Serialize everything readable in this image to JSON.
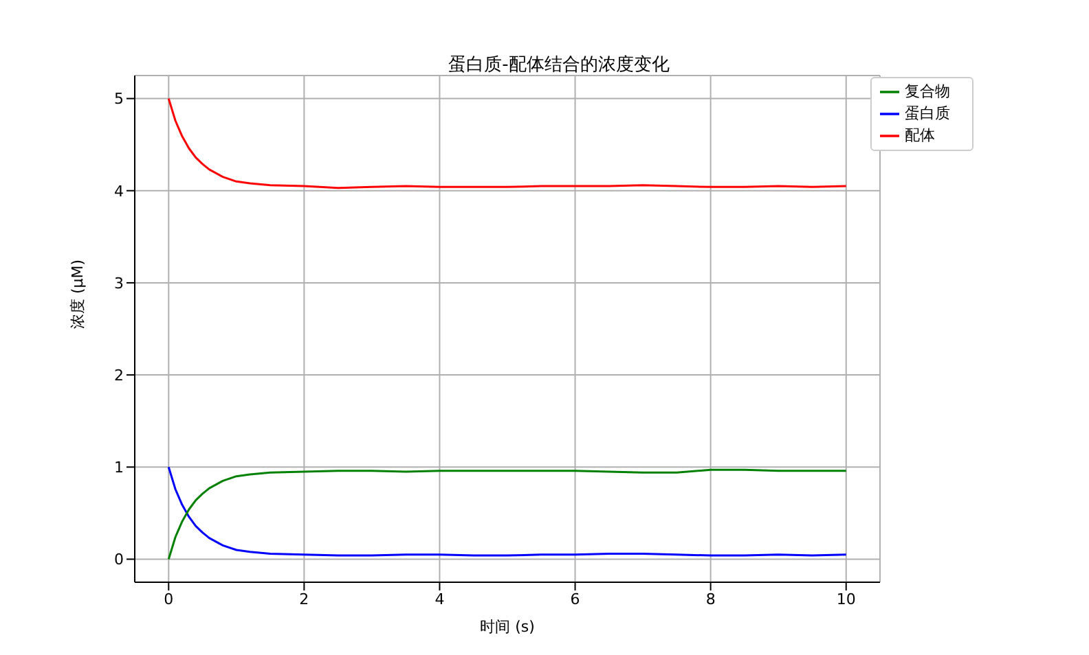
{
  "chart_data": {
    "type": "line",
    "title": "蛋白质-配体结合的浓度变化",
    "xlabel": "时间 (s)",
    "ylabel": "浓度 (μM)",
    "x": [
      0,
      0.1,
      0.2,
      0.3,
      0.4,
      0.5,
      0.6,
      0.8,
      1.0,
      1.2,
      1.5,
      2,
      2.5,
      3,
      3.5,
      4,
      4.5,
      5,
      5.5,
      6,
      6.5,
      7,
      7.5,
      8,
      8.5,
      9,
      9.5,
      10
    ],
    "series": [
      {
        "name": "蛋白质",
        "color": "#0000ff",
        "values": [
          1.0,
          0.76,
          0.59,
          0.46,
          0.36,
          0.29,
          0.23,
          0.15,
          0.1,
          0.08,
          0.06,
          0.05,
          0.04,
          0.04,
          0.05,
          0.05,
          0.04,
          0.04,
          0.05,
          0.05,
          0.06,
          0.06,
          0.05,
          0.04,
          0.04,
          0.05,
          0.04,
          0.05
        ]
      },
      {
        "name": "配体",
        "color": "#ff0000",
        "values": [
          5.0,
          4.76,
          4.59,
          4.46,
          4.36,
          4.29,
          4.23,
          4.15,
          4.1,
          4.08,
          4.06,
          4.05,
          4.03,
          4.04,
          4.05,
          4.04,
          4.04,
          4.04,
          4.05,
          4.05,
          4.05,
          4.06,
          4.05,
          4.04,
          4.04,
          4.05,
          4.04,
          4.05
        ]
      },
      {
        "name": "复合物",
        "color": "#008000",
        "values": [
          0,
          0.24,
          0.41,
          0.54,
          0.64,
          0.71,
          0.77,
          0.85,
          0.9,
          0.92,
          0.94,
          0.95,
          0.96,
          0.96,
          0.95,
          0.96,
          0.96,
          0.96,
          0.96,
          0.96,
          0.95,
          0.94,
          0.94,
          0.97,
          0.97,
          0.96,
          0.96,
          0.96
        ]
      }
    ],
    "xlim": [
      -0.5,
      10.5
    ],
    "xticks": [
      0,
      2,
      4,
      6,
      8,
      10
    ],
    "ylim": [
      -0.25,
      5.25
    ],
    "yticks": [
      0,
      1,
      2,
      3,
      4,
      5
    ],
    "grid": true,
    "legend": "top right",
    "marker": "none",
    "line_style": "solid"
  }
}
